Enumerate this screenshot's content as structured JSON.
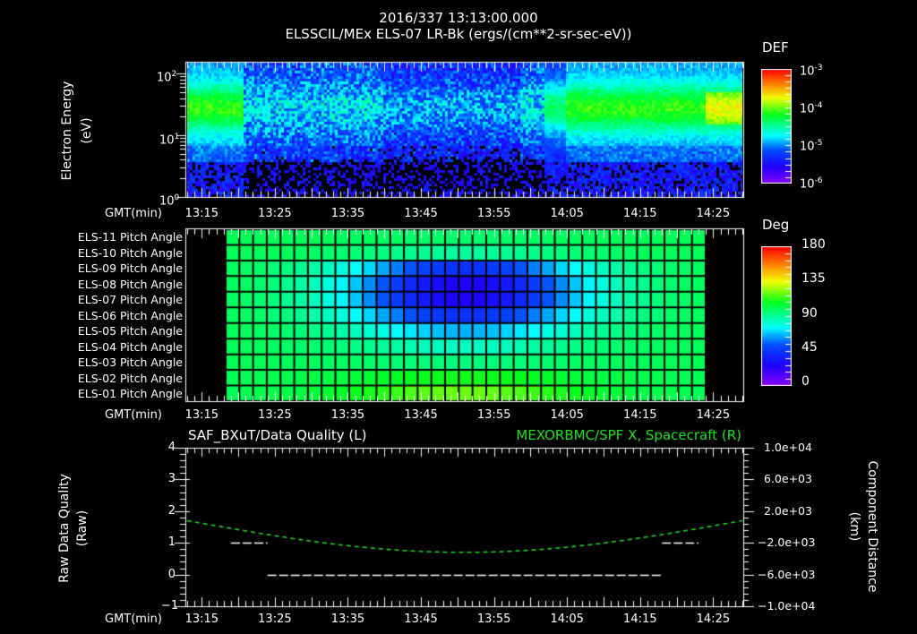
{
  "header": {
    "timestamp": "2016/337 13:13:00.000",
    "title": "ELSSCIL/MEx ELS-07 LR-Bk  (ergs/(cm**2-sr-sec-eV))"
  },
  "time_axis": {
    "label": "GMT(min)",
    "ticks": [
      "13:15",
      "13:25",
      "13:35",
      "13:45",
      "13:55",
      "14:05",
      "14:15",
      "14:25"
    ]
  },
  "panel1": {
    "ylabel_line1": "Electron Energy",
    "ylabel_line2": "(eV)",
    "y_ticks": [
      {
        "base": "10",
        "exp": "2"
      },
      {
        "base": "10",
        "exp": "1"
      },
      {
        "base": "10",
        "exp": "0"
      }
    ],
    "colorbar": {
      "title": "DEF",
      "ticks": [
        {
          "base": "10",
          "exp": "-3"
        },
        {
          "base": "10",
          "exp": "-4"
        },
        {
          "base": "10",
          "exp": "-5"
        },
        {
          "base": "10",
          "exp": "-6"
        }
      ]
    }
  },
  "panel2": {
    "rows": [
      "ELS-11 Pitch Angle",
      "ELS-10 Pitch Angle",
      "ELS-09 Pitch Angle",
      "ELS-08 Pitch Angle",
      "ELS-07 Pitch Angle",
      "ELS-06 Pitch Angle",
      "ELS-05 Pitch Angle",
      "ELS-04 Pitch Angle",
      "ELS-03 Pitch Angle",
      "ELS-02 Pitch Angle",
      "ELS-01 Pitch Angle"
    ],
    "colorbar": {
      "title": "Deg",
      "ticks": [
        "180",
        "135",
        "90",
        "45",
        "0"
      ]
    }
  },
  "panel3": {
    "left_title": "SAF_BXuT/Data Quality (L)",
    "right_title": "MEXORBMC/SPF X, Spacecraft (R)",
    "right_title_color": "#22dd22",
    "ylabel_left_line1": "Raw Data Quality",
    "ylabel_left_line2": "(Raw)",
    "ylabel_right_line1": "Component Distance",
    "ylabel_right_line2": "(km)",
    "left_ticks": [
      "4",
      "3",
      "2",
      "1",
      "0",
      "−1"
    ],
    "right_ticks": [
      "1.0e+04",
      "6.0e+03",
      "2.0e+03",
      "−2.0e+03",
      "−6.0e+03",
      "−1.0e+04"
    ]
  },
  "chart_data": [
    {
      "type": "heatmap",
      "title": "ELSSCIL/MEx ELS-07 LR-Bk (ergs/(cm**2-sr-sec-eV))",
      "xlabel": "GMT(min)",
      "ylabel": "Electron Energy (eV)",
      "x_ticks": [
        "13:15",
        "13:25",
        "13:35",
        "13:45",
        "13:55",
        "14:05",
        "14:15",
        "14:25"
      ],
      "y_scale": "log",
      "ylim": [
        1,
        150
      ],
      "colorbar": {
        "label": "DEF",
        "scale": "log",
        "range": [
          1e-06,
          0.001
        ]
      },
      "description": "Strong flux (green/yellow, ~1e-4) at 15-40 eV from 13:13-13:20 and 14:04-14:29; weak blue flux (~1e-5.5) 13:22-14:02; low flux below ~4 eV throughout."
    },
    {
      "type": "heatmap",
      "title": "ELS anode pitch angles",
      "xlabel": "GMT(min)",
      "rows": [
        "ELS-11",
        "ELS-10",
        "ELS-09",
        "ELS-08",
        "ELS-07",
        "ELS-06",
        "ELS-05",
        "ELS-04",
        "ELS-03",
        "ELS-02",
        "ELS-01"
      ],
      "x_range": [
        "13:18",
        "14:24"
      ],
      "n_columns": 35,
      "colorbar": {
        "label": "Deg",
        "range": [
          0,
          180
        ]
      },
      "description": "Pitch angles ~100 deg at edges, minimum ~25 deg around 13:50 for ELS-07/08, ~120 deg for ELS-01 near 13:50."
    },
    {
      "type": "line",
      "title": "SAF_BXuT/Data Quality (L) ; MEXORBMC/SPF X, Spacecraft (R)",
      "xlabel": "GMT(min)",
      "series": [
        {
          "name": "Data Quality (L)",
          "axis": "left",
          "ylim": [
            -1,
            4
          ],
          "segments": [
            {
              "x": [
                "13:19",
                "13:24"
              ],
              "y": 1
            },
            {
              "x": [
                "13:24",
                "14:18"
              ],
              "y": 0
            },
            {
              "x": [
                "14:18",
                "14:23"
              ],
              "y": 1
            }
          ]
        },
        {
          "name": "SPF X (R)",
          "axis": "right",
          "ylim": [
            -10000,
            10000
          ],
          "units": "km",
          "x": [
            "13:13",
            "13:25",
            "13:35",
            "13:45",
            "13:50",
            "13:55",
            "14:05",
            "14:15",
            "14:29"
          ],
          "values": [
            800,
            -500,
            -2000,
            -3000,
            -3200,
            -3000,
            -2200,
            -500,
            800
          ]
        }
      ]
    }
  ]
}
